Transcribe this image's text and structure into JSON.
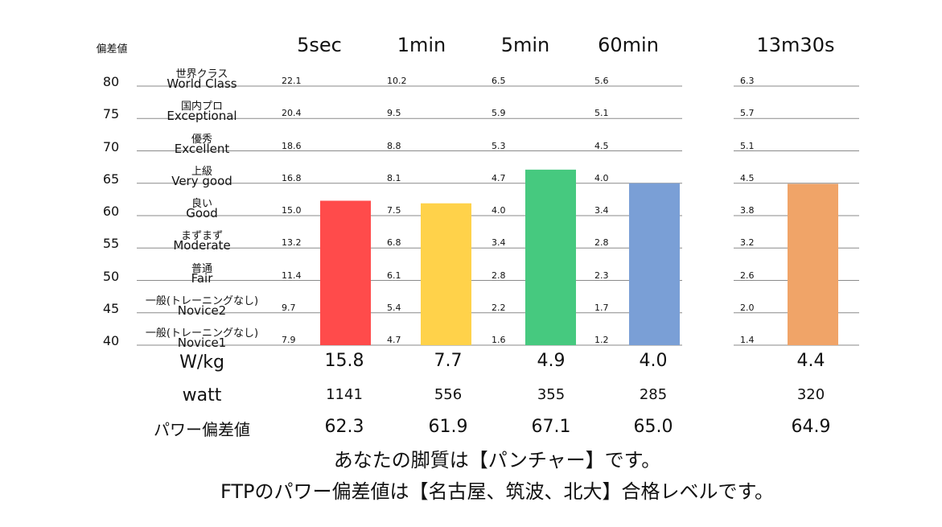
{
  "chart_data": {
    "type": "bar",
    "y_axis_title": "偏差値",
    "ylim": [
      40,
      80
    ],
    "y_ticks": [
      80,
      75,
      70,
      65,
      60,
      55,
      50,
      45,
      40
    ],
    "levels": [
      {
        "score": 80,
        "ja": "世界クラス",
        "en": "World Class"
      },
      {
        "score": 75,
        "ja": "国内プロ",
        "en": "Exceptional"
      },
      {
        "score": 70,
        "ja": "優秀",
        "en": "Excellent"
      },
      {
        "score": 65,
        "ja": "上級",
        "en": "Very good"
      },
      {
        "score": 60,
        "ja": "良い",
        "en": "Good"
      },
      {
        "score": 55,
        "ja": "まずまず",
        "en": "Moderate"
      },
      {
        "score": 50,
        "ja": "普通",
        "en": "Fair"
      },
      {
        "score": 45,
        "ja": "一般(トレーニングなし)",
        "en": "Novice2"
      },
      {
        "score": 40,
        "ja": "一般(トレーニングなし)",
        "en": "Novice1"
      }
    ],
    "categories": [
      "5sec",
      "1min",
      "5min",
      "60min",
      "13m30s"
    ],
    "columns": [
      {
        "label": "5sec",
        "thresholds": [
          "22.1",
          "20.4",
          "18.6",
          "16.8",
          "15.0",
          "13.2",
          "11.4",
          "9.7",
          "7.9"
        ],
        "value": 62.3,
        "wkg": "15.8",
        "watt": "1141",
        "score_text": "62.3",
        "color": "#ff4b4b"
      },
      {
        "label": "1min",
        "thresholds": [
          "10.2",
          "9.5",
          "8.8",
          "8.1",
          "7.5",
          "6.8",
          "6.1",
          "5.4",
          "4.7"
        ],
        "value": 61.9,
        "wkg": "7.7",
        "watt": "556",
        "score_text": "61.9",
        "color": "#ffd24a"
      },
      {
        "label": "5min",
        "thresholds": [
          "6.5",
          "5.9",
          "5.3",
          "4.7",
          "4.0",
          "3.4",
          "2.8",
          "2.2",
          "1.6"
        ],
        "value": 67.1,
        "wkg": "4.9",
        "watt": "355",
        "score_text": "67.1",
        "color": "#46c97f"
      },
      {
        "label": "60min",
        "thresholds": [
          "5.6",
          "5.1",
          "4.5",
          "4.0",
          "3.4",
          "2.8",
          "2.3",
          "1.7",
          "1.2"
        ],
        "value": 65.0,
        "wkg": "4.0",
        "watt": "285",
        "score_text": "65.0",
        "color": "#7a9fd6"
      },
      {
        "label": "13m30s",
        "thresholds": [
          "6.3",
          "5.7",
          "5.1",
          "4.5",
          "3.8",
          "3.2",
          "2.6",
          "2.0",
          "1.4"
        ],
        "value": 64.9,
        "wkg": "4.4",
        "watt": "320",
        "score_text": "64.9",
        "color": "#f0a468"
      }
    ],
    "row_labels": {
      "wkg": "W/kg",
      "watt": "watt",
      "score": "パワー偏差値"
    }
  },
  "footer": {
    "line1": "あなたの脚質は【パンチャー】です。",
    "line2": "FTPのパワー偏差値は【名古屋、筑波、北大】合格レベルです。"
  }
}
